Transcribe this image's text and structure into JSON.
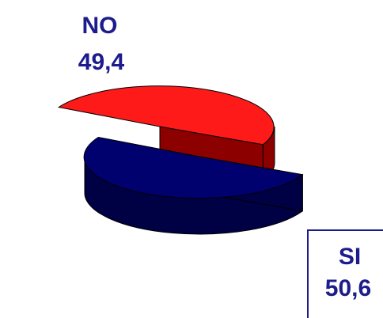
{
  "chart_data": {
    "type": "pie",
    "slices": [
      {
        "label": "NO",
        "value": 49.4,
        "display": "49,4",
        "color": "#ff1a1a",
        "side": "#8c0000"
      },
      {
        "label": "SI",
        "value": 50.6,
        "display": "50,6",
        "color": "#00006e",
        "side": "#000044"
      }
    ]
  }
}
